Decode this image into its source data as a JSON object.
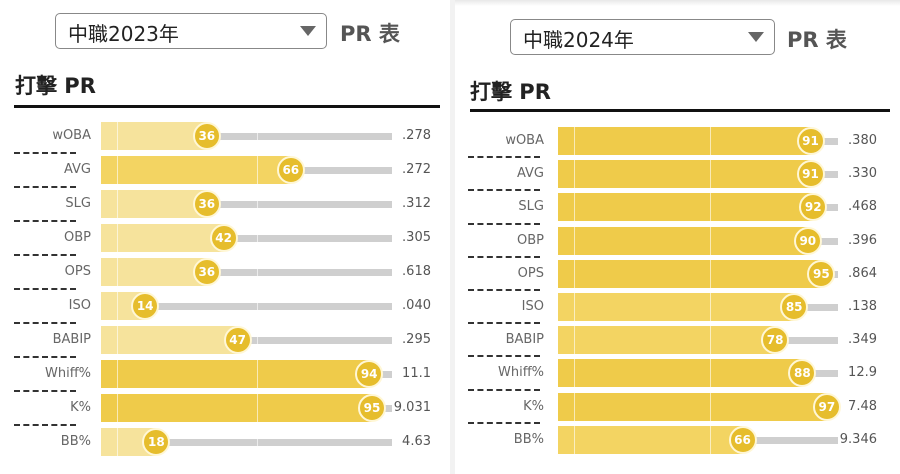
{
  "panels": [
    {
      "year_select": "中職2023年",
      "pr_title": "PR 表",
      "section_title": "打擊 PR",
      "rows": [
        {
          "label": "wOBA",
          "pr": 36,
          "value": ".278"
        },
        {
          "label": "AVG",
          "pr": 66,
          "value": ".272"
        },
        {
          "label": "SLG",
          "pr": 36,
          "value": ".312"
        },
        {
          "label": "OBP",
          "pr": 42,
          "value": ".305"
        },
        {
          "label": "OPS",
          "pr": 36,
          "value": ".618"
        },
        {
          "label": "ISO",
          "pr": 14,
          "value": ".040"
        },
        {
          "label": "BABIP",
          "pr": 47,
          "value": ".295"
        },
        {
          "label": "Whiff%",
          "pr": 94,
          "value": "11.1"
        },
        {
          "label": "K%",
          "pr": 95,
          "value": "9.031"
        },
        {
          "label": "BB%",
          "pr": 18,
          "value": "4.63"
        }
      ]
    },
    {
      "year_select": "中職2024年",
      "pr_title": "PR 表",
      "section_title": "打擊 PR",
      "rows": [
        {
          "label": "wOBA",
          "pr": 91,
          "value": ".380"
        },
        {
          "label": "AVG",
          "pr": 91,
          "value": ".330"
        },
        {
          "label": "SLG",
          "pr": 92,
          "value": ".468"
        },
        {
          "label": "OBP",
          "pr": 90,
          "value": ".396"
        },
        {
          "label": "OPS",
          "pr": 95,
          "value": ".864"
        },
        {
          "label": "ISO",
          "pr": 85,
          "value": ".138"
        },
        {
          "label": "BABIP",
          "pr": 78,
          "value": ".349"
        },
        {
          "label": "Whiff%",
          "pr": 88,
          "value": "12.9"
        },
        {
          "label": "K%",
          "pr": 97,
          "value": "7.48"
        },
        {
          "label": "BB%",
          "pr": 66,
          "value": "9.346"
        }
      ]
    }
  ],
  "colors": {
    "low": "#f6e39c",
    "mid": "#f3d462",
    "high": "#efcb4a",
    "circle": "#e6bd2c",
    "track": "#cfcfcf"
  }
}
